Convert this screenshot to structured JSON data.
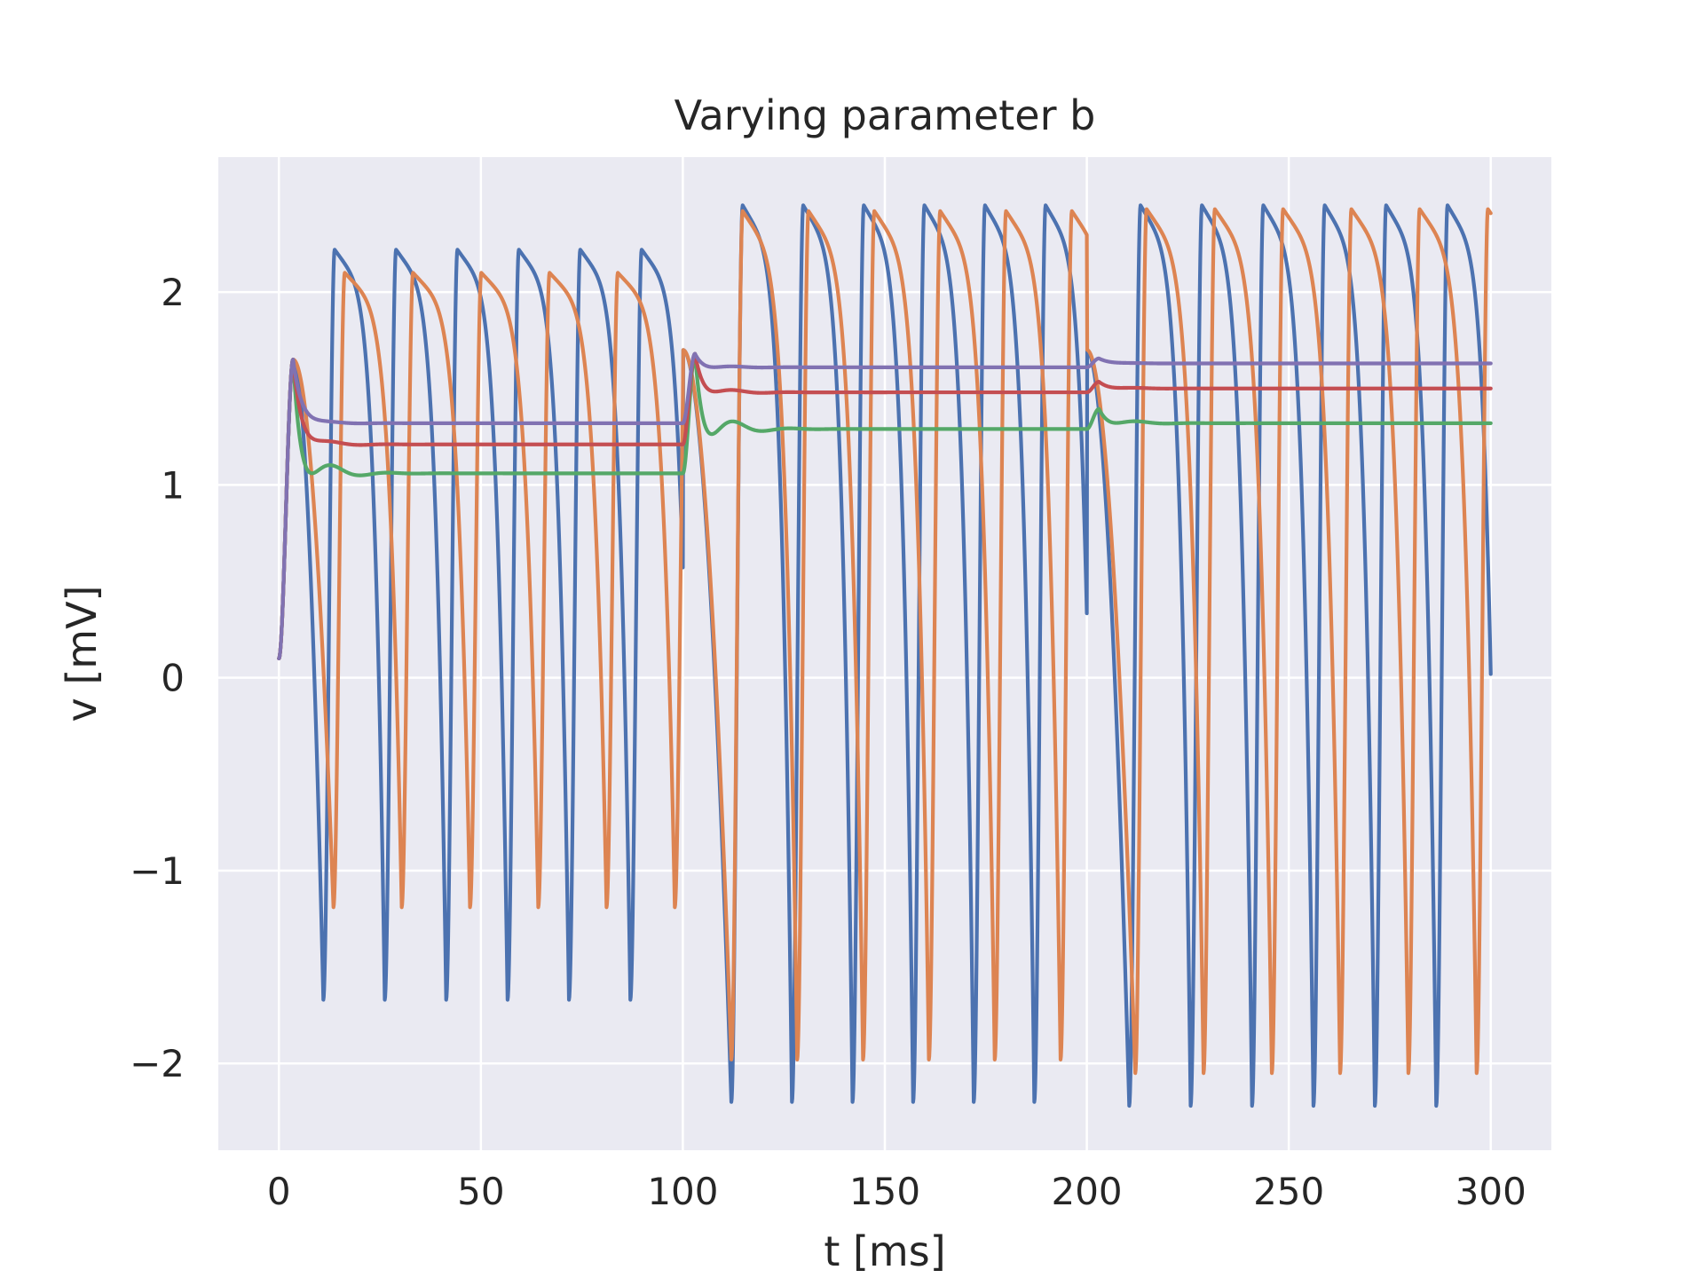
{
  "chart_data": {
    "type": "line",
    "title": "Varying parameter b",
    "xlabel": "t [ms]",
    "ylabel": "v [mV]",
    "xlim": [
      -15,
      315
    ],
    "ylim": [
      -2.45,
      2.7
    ],
    "xticks": [
      0,
      50,
      100,
      150,
      200,
      250,
      300
    ],
    "xtick_labels": [
      "0",
      "50",
      "100",
      "150",
      "200",
      "250",
      "300"
    ],
    "yticks": [
      -2,
      -1,
      0,
      1,
      2
    ],
    "ytick_labels": [
      "−2",
      "−1",
      "0",
      "1",
      "2"
    ],
    "grid": true,
    "legend": "none",
    "plot_background": "#eaeaf2",
    "series": [
      {
        "color": "#4c72b0",
        "oscillating": true,
        "segments": [
          {
            "t0": 0,
            "t1": 100,
            "period": 15.2,
            "peak": 2.22,
            "trough": -1.67,
            "first_trough": 11.0
          },
          {
            "t0": 100,
            "t1": 200,
            "period": 15.0,
            "peak": 2.45,
            "trough": -2.2,
            "first_trough": 112.0
          },
          {
            "t0": 200,
            "t1": 300,
            "period": 15.2,
            "peak": 2.45,
            "trough": -2.22,
            "first_trough": 210.5
          }
        ]
      },
      {
        "color": "#dd8452",
        "oscillating": true,
        "segments": [
          {
            "t0": 0,
            "t1": 100,
            "period": 16.9,
            "peak": 2.1,
            "trough": -1.19,
            "first_trough": 13.5
          },
          {
            "t0": 100,
            "t1": 200,
            "period": 16.3,
            "peak": 2.42,
            "trough": -1.98,
            "first_trough": 112.0
          },
          {
            "t0": 200,
            "t1": 300,
            "period": 16.9,
            "peak": 2.43,
            "trough": -2.05,
            "first_trough": 212.0
          }
        ]
      },
      {
        "color": "#55a868",
        "oscillating": false,
        "plateaus": [
          1.06,
          1.29,
          1.32
        ],
        "overshoot": 0.18
      },
      {
        "color": "#c44e52",
        "oscillating": false,
        "plateaus": [
          1.21,
          1.48,
          1.5
        ],
        "overshoot": 0.05
      },
      {
        "color": "#8172b2",
        "oscillating": false,
        "plateaus": [
          1.32,
          1.61,
          1.63
        ],
        "overshoot": 0.02
      }
    ]
  }
}
